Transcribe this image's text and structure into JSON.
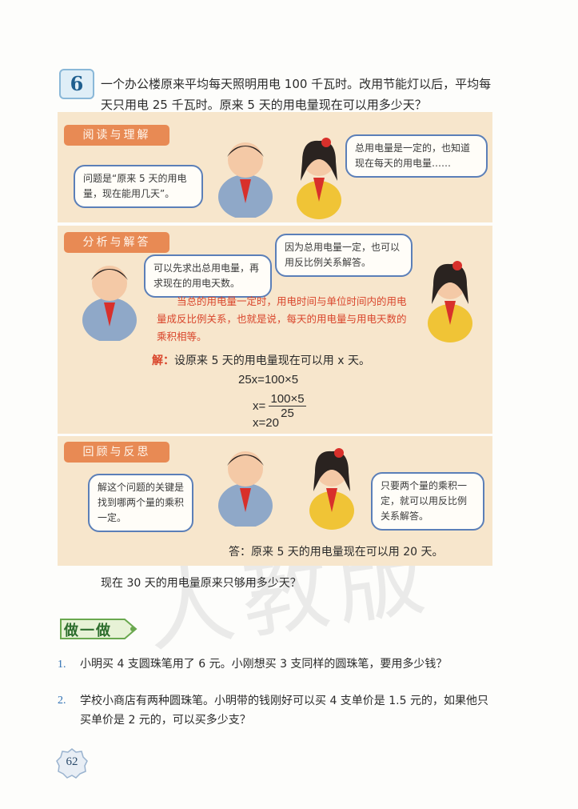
{
  "problem": {
    "number": "6",
    "text": "一个办公楼原来平均每天照明用电 100 千瓦时。改用节能灯以后，平均每天只用电 25 千瓦时。原来 5 天的用电量现在可以用多少天？"
  },
  "section1": {
    "label": "阅读与理解",
    "bubble_boy": "问题是“原来 5 天的用电量，现在能用几天”。",
    "bubble_girl": "总用电量是一定的，也知道现在每天的用电量……"
  },
  "section2": {
    "label": "分析与解答",
    "bubble_boy": "可以先求出总用电量，再求现在的用电天数。",
    "bubble_girl": "因为总用电量一定，也可以用反比例关系解答。",
    "note": "当总的用电量一定时，用电时间与单位时间内的用电量成反比例关系，也就是说，每天的用电量与用电天数的乘积相等。",
    "solution_key": "解：",
    "solution_text": "设原来 5 天的用电量现在可以用 x 天。",
    "eq1": "25x=100×5",
    "eq2_lhs": "x=",
    "eq2_num": "100×5",
    "eq2_den": "25",
    "eq3": "x=20"
  },
  "section3": {
    "label": "回顾与反思",
    "bubble_boy": "解这个问题的关键是找到哪两个量的乘积一定。",
    "bubble_girl": "只要两个量的乘积一定，就可以用反比例关系解答。",
    "answer": "答：原来 5 天的用电量现在可以用 20 天。"
  },
  "follow_question": "现在 30 天的用电量原来只够用多少天？",
  "doit_label": "做一做",
  "exercises": [
    {
      "num": "1.",
      "text": "小明买 4 支圆珠笔用了 6 元。小刚想买 3 支同样的圆珠笔，要用多少钱？"
    },
    {
      "num": "2.",
      "text": "学校小商店有两种圆珠笔。小明带的钱刚好可以买 4 支单价是 1.5 元的，如果他只买单价是 2 元的，可以买多少支？"
    }
  ],
  "page_number": "62",
  "watermark": "人教版",
  "colors": {
    "panel": "#f7e6cc",
    "section_label": "#e88a54",
    "bubble_border": "#5b7fb8",
    "note_red": "#d9452b"
  }
}
